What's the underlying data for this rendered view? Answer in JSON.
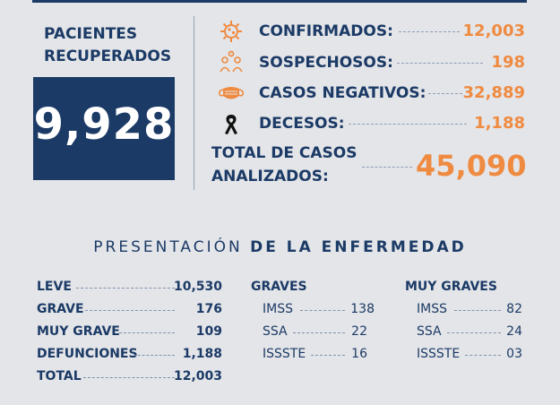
{
  "recuperados": {
    "label_line1": "PACIENTES",
    "label_line2": "RECUPERADOS",
    "value": "9,928"
  },
  "stats": [
    {
      "icon": "virus-icon",
      "label": "CONFIRMADOS:",
      "value": "12,003"
    },
    {
      "icon": "suspect-people-icon",
      "label": "SOSPECHOSOS:",
      "value": "198"
    },
    {
      "icon": "face-mask-icon",
      "label": "CASOS NEGATIVOS:",
      "value": "32,889"
    },
    {
      "icon": "mourning-ribbon-icon",
      "label": "DECESOS:",
      "value": "1,188"
    }
  ],
  "total": {
    "label_line1": "TOTAL DE CASOS",
    "label_line2": "ANALIZADOS:",
    "value": "45,090"
  },
  "presentacion": {
    "title_light": "PRESENTACIÓN",
    "title_bold": "DE LA ENFERMEDAD",
    "severity": [
      {
        "label": "LEVE",
        "value": "10,530"
      },
      {
        "label": "GRAVE",
        "value": "176"
      },
      {
        "label": "MUY GRAVE",
        "value": "109"
      },
      {
        "label": "DEFUNCIONES",
        "value": "1,188"
      },
      {
        "label": "TOTAL",
        "value": "12,003"
      }
    ],
    "graves": {
      "header": "GRAVES",
      "rows": [
        {
          "label": "IMSS",
          "value": "138"
        },
        {
          "label": "SSA",
          "value": "22"
        },
        {
          "label": "ISSSTE",
          "value": "16"
        }
      ]
    },
    "muy_graves": {
      "header": "MUY GRAVES",
      "rows": [
        {
          "label": "IMSS",
          "value": "82"
        },
        {
          "label": "SSA",
          "value": "24"
        },
        {
          "label": "ISSSTE",
          "value": "03"
        }
      ]
    }
  },
  "colors": {
    "navy": "#1b3a66",
    "orange": "#ef8a41",
    "background": "#e4e5e8"
  }
}
